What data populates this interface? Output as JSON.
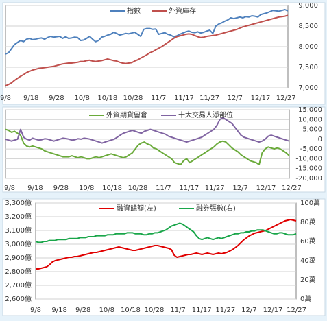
{
  "colors": {
    "blue": "#4f81bd",
    "red": "#c0504d",
    "green": "#6aaa3a",
    "purple": "#8064a2",
    "brightRed": "#e00000",
    "brightGreen": "#1aa64a",
    "panel": "#ffffff",
    "bg": "#e6f2fa"
  },
  "chart_data": [
    {
      "type": "line",
      "x_ticks": [
        "9/8",
        "9/18",
        "9/28",
        "10/8",
        "10/18",
        "10/28",
        "11/7",
        "11/17",
        "11/27",
        "12/7",
        "12/17",
        "12/27"
      ],
      "y_ticks": [
        "7,000",
        "7,500",
        "8,000",
        "8,500",
        "9,000"
      ],
      "ylim": [
        7000,
        9000
      ],
      "legend_position": "top",
      "series": [
        {
          "name": "指數",
          "color": "blue",
          "values": [
            7820,
            7850,
            7950,
            8050,
            8100,
            8150,
            8120,
            8180,
            8200,
            8170,
            8180,
            8200,
            8210,
            8180,
            8220,
            8250,
            8230,
            8240,
            8250,
            8200,
            8240,
            8200,
            8210,
            8230,
            8220,
            8150,
            8160,
            8200,
            8250,
            8180,
            8120,
            8150,
            8230,
            8250,
            8280,
            8300,
            8350,
            8320,
            8280,
            8300,
            8320,
            8310,
            8330,
            8350,
            8300,
            8250,
            8420,
            8440,
            8440,
            8420,
            8430,
            8300,
            8320,
            8340,
            8300,
            8280,
            8240,
            8260,
            8300,
            8330,
            8360,
            8380,
            8350,
            8340,
            8360,
            8330,
            8350,
            8380,
            8400,
            8320,
            8500,
            8550,
            8580,
            8620,
            8650,
            8700,
            8680,
            8700,
            8720,
            8700,
            8730,
            8720,
            8750,
            8740,
            8720,
            8780,
            8800,
            8820,
            8850,
            8880,
            8870,
            8860,
            8880,
            8900,
            8870
          ]
        },
        {
          "name": "外資庫存",
          "color": "red",
          "values": [
            7050,
            7080,
            7120,
            7180,
            7230,
            7280,
            7320,
            7370,
            7400,
            7430,
            7450,
            7470,
            7480,
            7490,
            7500,
            7510,
            7520,
            7540,
            7560,
            7580,
            7590,
            7600,
            7600,
            7610,
            7620,
            7640,
            7640,
            7660,
            7670,
            7650,
            7640,
            7650,
            7660,
            7680,
            7700,
            7680,
            7660,
            7650,
            7620,
            7600,
            7590,
            7600,
            7610,
            7650,
            7680,
            7720,
            7760,
            7800,
            7850,
            7880,
            7920,
            7960,
            8000,
            8050,
            8100,
            8150,
            8200,
            8240,
            8260,
            8280,
            8300,
            8310,
            8300,
            8270,
            8240,
            8220,
            8230,
            8250,
            8260,
            8270,
            8280,
            8300,
            8320,
            8340,
            8360,
            8380,
            8400,
            8420,
            8450,
            8480,
            8500,
            8520,
            8540,
            8560,
            8580,
            8600,
            8620,
            8640,
            8660,
            8680,
            8700,
            8720,
            8730,
            8740,
            8760
          ]
        }
      ]
    },
    {
      "type": "line",
      "x_ticks": [
        "9/8",
        "9/18",
        "9/28",
        "10/8",
        "10/18",
        "10/28",
        "11/7",
        "11/17",
        "11/27",
        "12/7",
        "12/17",
        "12/27"
      ],
      "y_ticks": [
        "15,000",
        "10,000",
        "5,000",
        "0",
        "-5,000",
        "-10,000",
        "-15,000",
        "-20,000"
      ],
      "ylim": [
        -20000,
        15000
      ],
      "legend_position": "top",
      "series": [
        {
          "name": "外資期貨留倉",
          "color": "green",
          "values": [
            5000,
            4500,
            3500,
            4000,
            3000,
            2000,
            -2000,
            -3500,
            -4000,
            -3500,
            -4000,
            -4500,
            -5000,
            -6000,
            -6500,
            -7000,
            -7500,
            -8000,
            -8500,
            -9000,
            -9000,
            -9000,
            -8500,
            -9000,
            -9500,
            -9000,
            -9500,
            -10000,
            -10000,
            -9500,
            -9000,
            -9500,
            -9000,
            -8500,
            -8000,
            -7500,
            -8000,
            -8500,
            -9000,
            -9500,
            -9000,
            -8000,
            -7000,
            -5000,
            -3000,
            -2000,
            -1500,
            -2500,
            -3000,
            -4500,
            -5000,
            -6000,
            -7000,
            -8000,
            -9000,
            -10000,
            -12000,
            -12500,
            -13000,
            -11000,
            -10000,
            -12000,
            -11000,
            -10000,
            -9000,
            -8000,
            -7000,
            -6000,
            -5000,
            -4000,
            -2500,
            -1500,
            -1000,
            -1500,
            -3000,
            -4500,
            -5500,
            -6500,
            -8000,
            -9000,
            -10000,
            -11000,
            -11500,
            -12000,
            -13000,
            -7000,
            -5000,
            -4000,
            -4500,
            -5000,
            -4500,
            -5000,
            -6000,
            -7000,
            -8500
          ]
        },
        {
          "name": "十大交易人淨部位",
          "color": "purple",
          "values": [
            0,
            -500,
            -1000,
            -500,
            0,
            5000,
            1000,
            0,
            -500,
            500,
            0,
            -500,
            -300,
            200,
            0,
            -500,
            -1000,
            -500,
            0,
            500,
            300,
            0,
            -500,
            -300,
            200,
            0,
            500,
            300,
            0,
            -500,
            -1000,
            -1500,
            -2000,
            -1500,
            -1000,
            -500,
            0,
            1000,
            2000,
            3000,
            3500,
            4000,
            4500,
            4000,
            3500,
            3000,
            4000,
            4500,
            5000,
            4500,
            4000,
            3500,
            3000,
            2500,
            1500,
            1000,
            500,
            0,
            -500,
            -1000,
            -1500,
            -1000,
            -500,
            0,
            500,
            1000,
            2000,
            3000,
            4000,
            5000,
            7000,
            10000,
            11000,
            10000,
            9000,
            8000,
            6000,
            4000,
            2000,
            1000,
            500,
            0,
            -500,
            -1000,
            -1500,
            -1000,
            0,
            1500,
            2000,
            1500,
            1000,
            500,
            0,
            -500,
            -1000
          ]
        }
      ]
    },
    {
      "type": "line",
      "x_ticks": [
        "9/8",
        "9/18",
        "9/28",
        "10/8",
        "10/18",
        "10/28",
        "11/7",
        "11/17",
        "11/27",
        "12/7",
        "12/17",
        "12/27"
      ],
      "y_ticks_left": [
        "2,600億",
        "2,700億",
        "2,800億",
        "2,900億",
        "3,000億",
        "3,100億",
        "3,200億",
        "3,300億"
      ],
      "y_ticks_right": [
        "0萬",
        "20萬",
        "40萬",
        "60萬",
        "80萬",
        "100萬"
      ],
      "ylim_left": [
        2600,
        3300
      ],
      "ylim_right": [
        0,
        100
      ],
      "legend_position": "top",
      "series": [
        {
          "name": "融資餘額(左)",
          "color": "brightRed",
          "axis": "left",
          "values": [
            2820,
            2820,
            2825,
            2830,
            2835,
            2850,
            2870,
            2880,
            2885,
            2890,
            2895,
            2900,
            2905,
            2905,
            2910,
            2910,
            2915,
            2920,
            2925,
            2930,
            2935,
            2940,
            2940,
            2945,
            2950,
            2955,
            2960,
            2965,
            2970,
            2975,
            2980,
            2975,
            2970,
            2965,
            2960,
            2955,
            2955,
            2960,
            2965,
            2970,
            2975,
            2980,
            2985,
            2990,
            2990,
            2985,
            2980,
            2975,
            2970,
            2960,
            2920,
            2905,
            2910,
            2915,
            2920,
            2925,
            2925,
            2930,
            2935,
            2930,
            2925,
            2930,
            2935,
            2930,
            2925,
            2930,
            2935,
            2930,
            2935,
            2940,
            2950,
            2960,
            2975,
            2990,
            3010,
            3030,
            3045,
            3060,
            3070,
            3080,
            3085,
            3090,
            3095,
            3100,
            3110,
            3120,
            3130,
            3140,
            3150,
            3160,
            3170,
            3175,
            3180,
            3175,
            3170
          ]
        },
        {
          "name": "融券張數(右)",
          "color": "brightGreen",
          "axis": "right",
          "values": [
            60,
            59,
            59,
            60,
            60,
            61,
            61,
            61,
            62,
            62,
            62,
            62,
            63,
            63,
            63,
            63,
            64,
            64,
            64,
            65,
            65,
            65,
            66,
            66,
            66,
            66,
            67,
            67,
            67,
            68,
            68,
            68,
            68,
            69,
            69,
            69,
            68,
            68,
            68,
            67,
            67,
            68,
            68,
            69,
            69,
            70,
            71,
            72,
            74,
            76,
            77,
            78,
            79,
            78,
            76,
            74,
            72,
            70,
            66,
            63,
            62,
            63,
            64,
            63,
            62,
            63,
            64,
            63,
            64,
            65,
            66,
            67,
            68,
            68,
            69,
            69,
            70,
            70,
            71,
            71,
            72,
            72,
            72,
            71,
            70,
            69,
            68,
            68,
            69,
            69,
            68,
            67,
            67,
            67,
            68
          ]
        }
      ]
    }
  ]
}
